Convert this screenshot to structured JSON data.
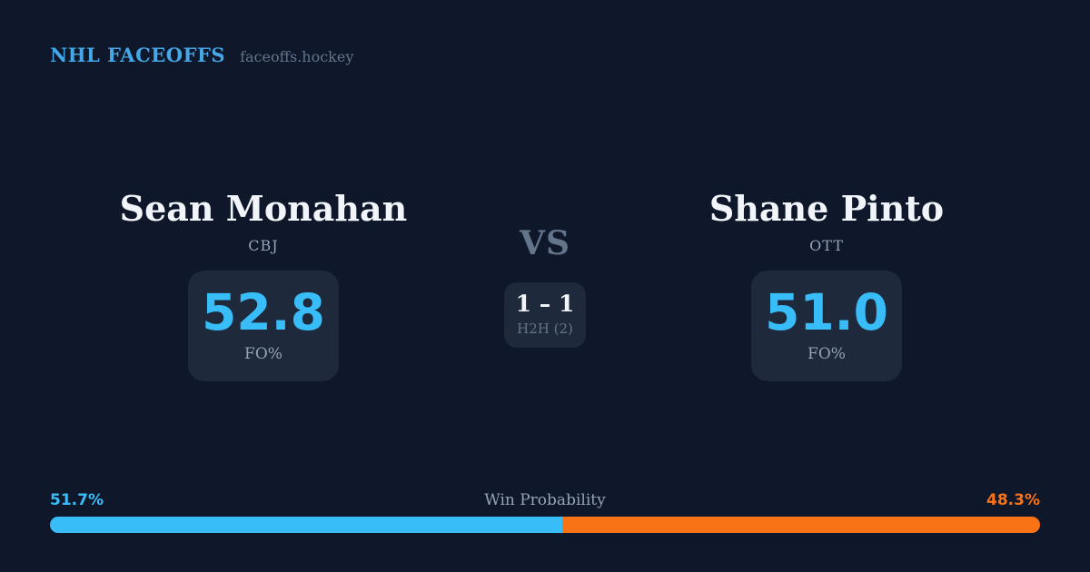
{
  "header": {
    "brand": "NHL FACEOFFS",
    "site": "faceoffs.hockey"
  },
  "matchup": {
    "vs_label": "VS",
    "h2h": {
      "score": "1 – 1",
      "label": "H2H (2)"
    },
    "players": [
      {
        "name": "Sean Monahan",
        "team": "CBJ",
        "stat_value": "52.8",
        "stat_label": "FO%"
      },
      {
        "name": "Shane Pinto",
        "team": "OTT",
        "stat_value": "51.0",
        "stat_label": "FO%"
      }
    ]
  },
  "win_probability": {
    "title": "Win Probability",
    "left_label": "51.7%",
    "right_label": "48.3%",
    "left_value": 51.7,
    "right_value": 48.3
  },
  "colors": {
    "background": "#0f172a",
    "card": "#1e293b",
    "accent_blue": "#38bdf8",
    "brand_blue": "#45a7e6",
    "orange": "#f97316",
    "text_white": "#f1f5f9",
    "text_muted": "#94a3b8",
    "text_dim": "#64748b"
  }
}
